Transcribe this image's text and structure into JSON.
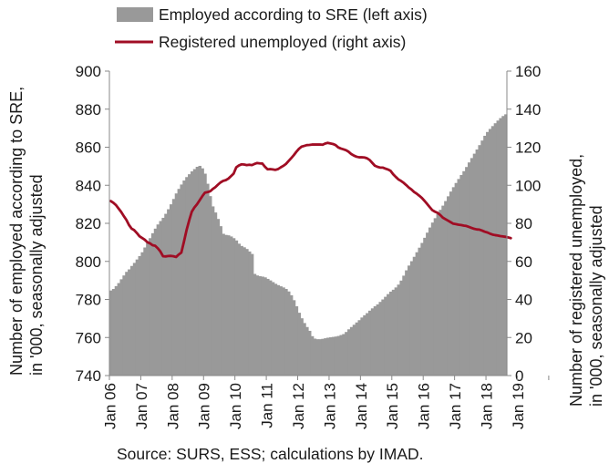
{
  "chart_data": {
    "type": "bar",
    "legend": {
      "position": "top",
      "items": [
        {
          "series": "employed",
          "label": "Employed according to SRE (left axis)"
        },
        {
          "series": "unemployed",
          "label": "Registered unemployed (right axis)"
        }
      ]
    },
    "ylabel_left": "Number of employed according to SRE, in '000, seasonally adjusted",
    "ylabel_right": "Number of registered unemployed, in '000, seasonally adjusted",
    "ylim_left": [
      740,
      900
    ],
    "ylim_right": [
      0,
      160
    ],
    "yticks_left": [
      "900",
      "880",
      "860",
      "840",
      "820",
      "800",
      "780",
      "760",
      "740"
    ],
    "yticks_right": [
      "160",
      "140",
      "120",
      "100",
      "80",
      "60",
      "40",
      "20",
      "0"
    ],
    "xticks": [
      "Jan 06",
      "Jan 07",
      "Jan 08",
      "Jan 09",
      "Jan 10",
      "Jan 11",
      "Jan 12",
      "Jan 13",
      "Jan 14",
      "Jan 15",
      "Jan 16",
      "Jan 17",
      "Jan 18",
      "Jan 19"
    ],
    "x_start": "2006-01",
    "x_end": "2019-12",
    "grid": false,
    "colors": {
      "employed": "#999999",
      "unemployed": "#a00d24",
      "axis": "#888888"
    },
    "series": [
      {
        "name": "Employed according to SRE (left axis)",
        "axis": "left",
        "type": "area",
        "frequency": "monthly",
        "values": [
          784.7,
          785.5,
          787,
          788.6,
          790.6,
          792.6,
          794.5,
          795.8,
          797.6,
          799.2,
          801,
          802.8,
          804.8,
          807.3,
          809.7,
          812.2,
          814.8,
          817.2,
          819.4,
          821.2,
          822.9,
          825,
          827.4,
          830,
          832.8,
          835.7,
          838.1,
          840.4,
          842.5,
          844.3,
          845.8,
          847.3,
          848.5,
          849.7,
          850.2,
          848.9,
          846.1,
          840.8,
          834.3,
          828.9,
          825.7,
          822.3,
          818.5,
          814.5,
          813.9,
          813.7,
          813.1,
          812.2,
          811,
          809.3,
          808.1,
          807.4,
          806.5,
          805.2,
          803.9,
          793.4,
          792.6,
          792.2,
          792,
          791.6,
          790.8,
          790,
          789.1,
          788.2,
          787.5,
          786.9,
          786.3,
          785.5,
          784.2,
          782.2,
          779.6,
          776.4,
          773,
          770.1,
          767.6,
          765.5,
          763.5,
          760.7,
          759.4,
          759.1,
          759.1,
          759.3,
          759.6,
          759.9,
          760.1,
          760.3,
          760.5,
          760.8,
          761.3,
          761.8,
          762.9,
          764.3,
          765.5,
          766.7,
          767.9,
          769.1,
          770.5,
          771.7,
          772.8,
          774.1,
          775.3,
          776.4,
          777.4,
          778.7,
          780,
          781.4,
          782.8,
          784.1,
          785.1,
          786.3,
          787.8,
          789.9,
          792.5,
          795.3,
          797.8,
          800.1,
          802.4,
          804.8,
          807.2,
          809.7,
          812.4,
          815.1,
          817.8,
          820.4,
          822.7,
          824.9,
          827.1,
          829.3,
          831.7,
          834.2,
          836.7,
          839,
          841.2,
          843.3,
          845.4,
          847.4,
          849.6,
          852,
          854.3,
          856.6,
          858.8,
          861.1,
          863.5,
          866,
          868,
          869.6,
          871.1,
          872.6,
          874,
          875.3,
          876.4,
          877.3
        ]
      },
      {
        "name": "Registered unemployed (right axis)",
        "axis": "right",
        "type": "line",
        "frequency": "monthly",
        "values": [
          91.7,
          90.8,
          89.6,
          87.8,
          86,
          83.8,
          81.8,
          79.1,
          77.2,
          76.4,
          74.9,
          73.2,
          72.3,
          71.4,
          70.1,
          69.5,
          68.5,
          68.2,
          66.9,
          65.2,
          62.7,
          62.6,
          62.8,
          62.9,
          62.7,
          62.3,
          63.6,
          64.6,
          70.3,
          76.4,
          81.5,
          86.1,
          88.3,
          90,
          92.1,
          94.2,
          96.1,
          96.4,
          96.8,
          98,
          99,
          100.3,
          101.5,
          102.3,
          102.7,
          103.5,
          104.8,
          106.1,
          109.4,
          110.4,
          111,
          110.9,
          110.6,
          110.8,
          110.6,
          111.2,
          111.7,
          111.5,
          111.4,
          109.7,
          108.4,
          108.5,
          108.3,
          108.1,
          108.5,
          109.4,
          110.2,
          111.2,
          112.7,
          114.2,
          115.8,
          117.6,
          119.2,
          120.3,
          120.7,
          121.1,
          121.2,
          121.4,
          121.4,
          121.4,
          121.4,
          121.3,
          121.9,
          122.3,
          122,
          121.7,
          121.1,
          119.9,
          119.3,
          118.9,
          118.4,
          117.6,
          116.4,
          115.6,
          115,
          114.7,
          114.7,
          114.6,
          114.2,
          113.3,
          111.8,
          110.3,
          109.7,
          109.3,
          109.3,
          108.8,
          108.3,
          107.6,
          105.8,
          104.4,
          103.1,
          102.3,
          101.3,
          100.1,
          98.8,
          97.8,
          96.5,
          95.6,
          94.5,
          93.3,
          91.8,
          90.2,
          88.5,
          86.9,
          86.1,
          85.5,
          84.4,
          83,
          82.2,
          81.4,
          80.6,
          79.8,
          79.6,
          79.3,
          79.1,
          78.8,
          78.6,
          78.1,
          77.6,
          77.1,
          76.8,
          76.7,
          76.2,
          75.6,
          75.2,
          74.6,
          74.1,
          73.8,
          73.6,
          73.3,
          73.1,
          72.9,
          72.6,
          72.2
        ]
      }
    ]
  },
  "source": "Source: SURS, ESS; calculations by IMAD."
}
